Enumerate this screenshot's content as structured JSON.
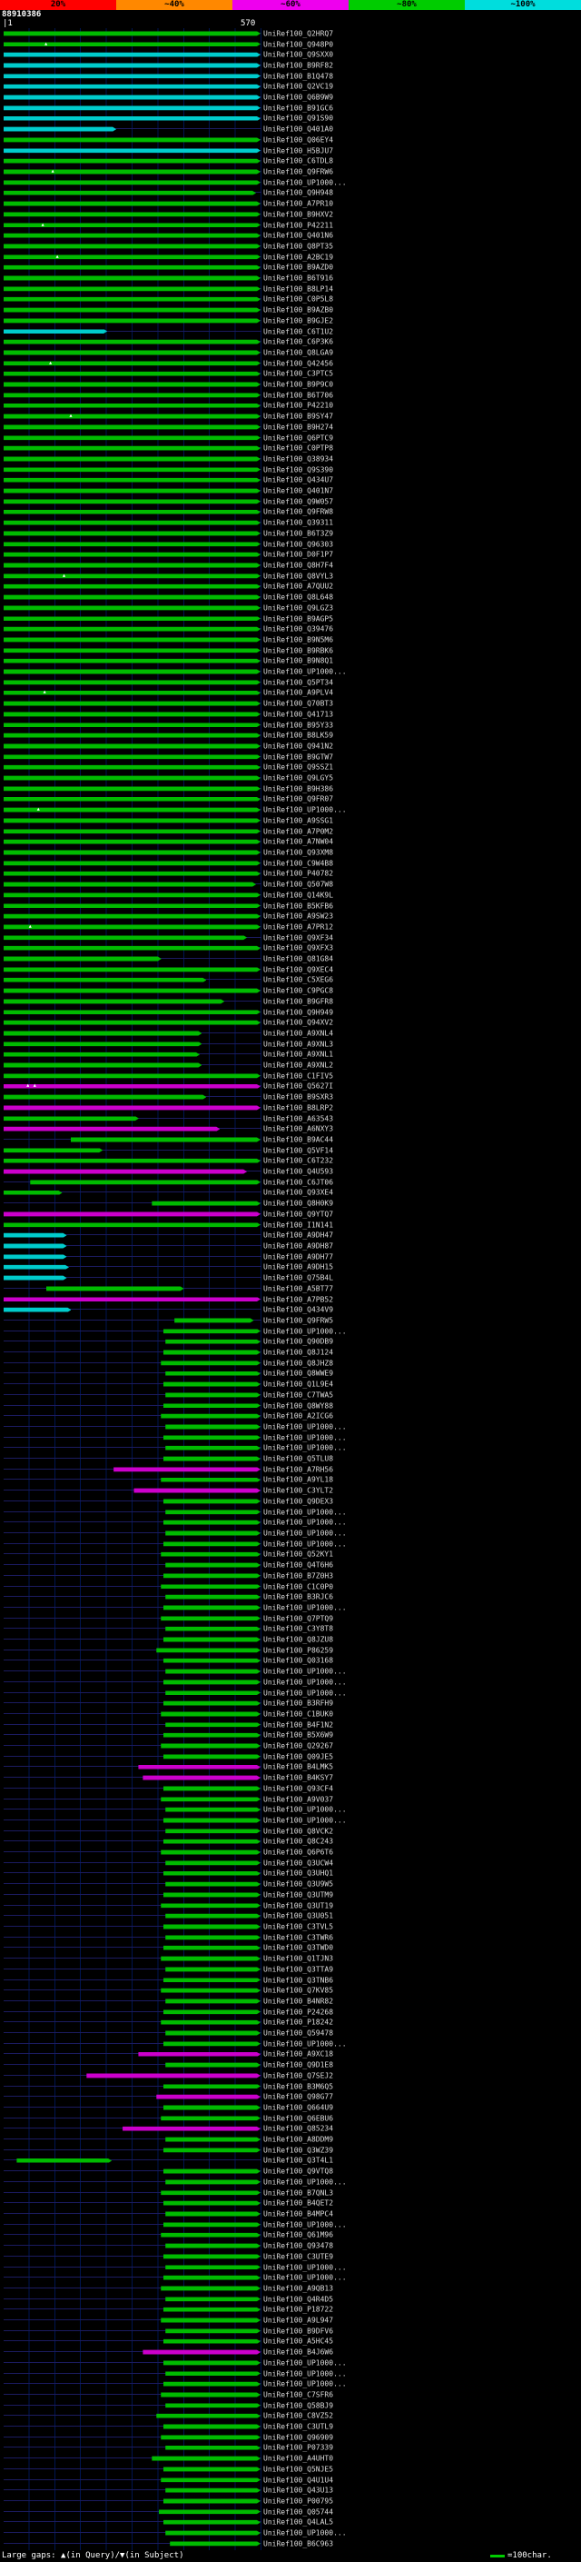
{
  "app": {
    "background": "#000000"
  },
  "chart_data": {
    "type": "bar",
    "subtype": "blast-alignment-overview",
    "title": "88910386",
    "query": {
      "id": "88910386",
      "length": 570
    },
    "axis": {
      "start_label": "|1",
      "end_label": "570",
      "min": 1,
      "max": 570,
      "gridline_interval": 57
    },
    "identity_scale": {
      "labels": [
        "20%",
        "~40%",
        "~60%",
        "~80%",
        "~100%"
      ],
      "colors": [
        "#ff0000",
        "#ff8800",
        "#ee00ee",
        "#00cc00",
        "#00dddd"
      ]
    },
    "bar_colors": {
      "g": "#00bb00",
      "c": "#00cccc",
      "m": "#cc00cc"
    },
    "label_prefix": "UniRef100_",
    "legend": {
      "gaps": "Large gaps: ▲(in Query)/▼(in Subject)",
      "scale_text": "=100char."
    },
    "rows": [
      [
        "Q2HRQ7",
        1,
        570,
        "g"
      ],
      [
        "Q948P0",
        1,
        570,
        "g",
        [
          95
        ]
      ],
      [
        "Q9SXX0",
        1,
        570,
        "c"
      ],
      [
        "B9RF82",
        1,
        570,
        "c"
      ],
      [
        "B1Q478",
        1,
        570,
        "c"
      ],
      [
        "Q2VC19",
        1,
        570,
        "c"
      ],
      [
        "Q6B9W9",
        1,
        570,
        "c"
      ],
      [
        "B91GC6",
        1,
        570,
        "c"
      ],
      [
        "Q91S90",
        1,
        570,
        "c"
      ],
      [
        "Q401A0",
        1,
        250,
        "c"
      ],
      [
        "Q06EY4",
        1,
        570,
        "g"
      ],
      [
        "H5BJU7",
        1,
        570,
        "c"
      ],
      [
        "C6TDL8",
        1,
        570,
        "g"
      ],
      [
        "Q9FRW6",
        1,
        570,
        "g",
        [
          110
        ]
      ],
      [
        "UP1000...",
        1,
        570,
        "g"
      ],
      [
        "Q9H948",
        1,
        560,
        "g"
      ],
      [
        "A7PR10",
        1,
        570,
        "g"
      ],
      [
        "B9HXV2",
        1,
        570,
        "g"
      ],
      [
        "P42211",
        1,
        570,
        "g",
        [
          88
        ]
      ],
      [
        "Q401N6",
        1,
        570,
        "g"
      ],
      [
        "Q8PT35",
        1,
        570,
        "g"
      ],
      [
        "A2BC19",
        1,
        570,
        "g",
        [
          120
        ]
      ],
      [
        "B9AZD0",
        1,
        570,
        "g"
      ],
      [
        "B6T916",
        1,
        570,
        "g"
      ],
      [
        "B8LP14",
        1,
        570,
        "g"
      ],
      [
        "C0P5L8",
        1,
        570,
        "g"
      ],
      [
        "B9AZB0",
        1,
        570,
        "g"
      ],
      [
        "B9GJE2",
        1,
        570,
        "g"
      ],
      [
        "C6T1U2",
        1,
        230,
        "c"
      ],
      [
        "C6P3K6",
        1,
        570,
        "g"
      ],
      [
        "Q8LGA9",
        1,
        570,
        "g"
      ],
      [
        "Q42456",
        1,
        570,
        "g",
        [
          105
        ]
      ],
      [
        "C3PTC5",
        1,
        570,
        "g"
      ],
      [
        "B9P9C0",
        1,
        570,
        "g"
      ],
      [
        "B6T706",
        1,
        570,
        "g"
      ],
      [
        "P42210",
        1,
        570,
        "g"
      ],
      [
        "B9SY47",
        1,
        570,
        "g",
        [
          150
        ]
      ],
      [
        "B9H274",
        1,
        570,
        "g"
      ],
      [
        "Q6PTC9",
        1,
        570,
        "g"
      ],
      [
        "C0PTP8",
        1,
        570,
        "g"
      ],
      [
        "Q38934",
        1,
        570,
        "g"
      ],
      [
        "Q9S390",
        1,
        570,
        "g"
      ],
      [
        "Q434U7",
        1,
        570,
        "g"
      ],
      [
        "Q401N7",
        1,
        570,
        "g"
      ],
      [
        "Q9W057",
        1,
        570,
        "g"
      ],
      [
        "Q9FRW8",
        1,
        570,
        "g"
      ],
      [
        "Q39311",
        1,
        570,
        "g"
      ],
      [
        "B6T3Z9",
        1,
        570,
        "g"
      ],
      [
        "Q96303",
        1,
        570,
        "g"
      ],
      [
        "D0F1P7",
        1,
        570,
        "g"
      ],
      [
        "Q8H7F4",
        1,
        570,
        "g"
      ],
      [
        "Q8VYL3",
        1,
        570,
        "g",
        [
          135
        ]
      ],
      [
        "A7QUU2",
        1,
        570,
        "g"
      ],
      [
        "Q8L648",
        1,
        570,
        "g"
      ],
      [
        "Q9LGZ3",
        1,
        570,
        "g"
      ],
      [
        "B9AGP5",
        1,
        570,
        "g"
      ],
      [
        "Q39476",
        1,
        570,
        "g"
      ],
      [
        "B9N5M6",
        1,
        570,
        "g"
      ],
      [
        "B9RBK6",
        1,
        570,
        "g"
      ],
      [
        "B9N8Q1",
        1,
        570,
        "g"
      ],
      [
        "UP1000...",
        1,
        570,
        "g"
      ],
      [
        "Q5PT34",
        1,
        570,
        "g"
      ],
      [
        "A9PLV4",
        1,
        570,
        "g",
        [
          92
        ]
      ],
      [
        "Q70BT3",
        1,
        570,
        "g"
      ],
      [
        "Q41713",
        1,
        570,
        "g"
      ],
      [
        "B95Y33",
        1,
        570,
        "g"
      ],
      [
        "B8LK59",
        1,
        570,
        "g"
      ],
      [
        "Q941N2",
        1,
        570,
        "g"
      ],
      [
        "B9GTW7",
        1,
        570,
        "g"
      ],
      [
        "Q9SSZ1",
        1,
        570,
        "g"
      ],
      [
        "Q9LGY5",
        1,
        570,
        "g"
      ],
      [
        "B9H386",
        1,
        570,
        "g"
      ],
      [
        "Q9FR07",
        1,
        570,
        "g"
      ],
      [
        "UP1000...",
        1,
        570,
        "g",
        [
          78
        ]
      ],
      [
        "A9SSG1",
        1,
        570,
        "g"
      ],
      [
        "A7P0M2",
        1,
        570,
        "g"
      ],
      [
        "A7NW04",
        1,
        570,
        "g"
      ],
      [
        "Q93XM8",
        1,
        570,
        "g"
      ],
      [
        "C9W4B8",
        1,
        570,
        "g"
      ],
      [
        "P40782",
        1,
        570,
        "g"
      ],
      [
        "Q507W8",
        1,
        560,
        "g"
      ],
      [
        "Q14K9L",
        1,
        570,
        "g"
      ],
      [
        "B5KFB6",
        1,
        570,
        "g"
      ],
      [
        "A9SW23",
        1,
        570,
        "g"
      ],
      [
        "A7PR12",
        1,
        570,
        "g",
        [
          60
        ]
      ],
      [
        "Q9XF34",
        1,
        540,
        "g"
      ],
      [
        "Q9XFX3",
        1,
        570,
        "g"
      ],
      [
        "Q81G84",
        1,
        350,
        "g"
      ],
      [
        "Q9XEC4",
        1,
        570,
        "g"
      ],
      [
        "C5XEG6",
        1,
        450,
        "g"
      ],
      [
        "C9PGC8",
        1,
        570,
        "g"
      ],
      [
        "B9GFR8",
        1,
        490,
        "g"
      ],
      [
        "Q9H949",
        1,
        570,
        "g"
      ],
      [
        "Q94XV2",
        1,
        570,
        "g"
      ],
      [
        "A9XNL4",
        1,
        440,
        "g"
      ],
      [
        "A9XNL3",
        1,
        440,
        "g"
      ],
      [
        "A9XNL1",
        1,
        435,
        "g"
      ],
      [
        "A9XNL2",
        1,
        440,
        "g"
      ],
      [
        "C1FIV5",
        1,
        570,
        "g"
      ],
      [
        "Q5627I",
        1,
        570,
        "m",
        [
          55,
          70
        ]
      ],
      [
        "B9SXR3",
        1,
        450,
        "g"
      ],
      [
        "B8LRP2",
        1,
        570,
        "m"
      ],
      [
        "A63543",
        1,
        300,
        "g"
      ],
      [
        "A6NXY3",
        1,
        480,
        "m"
      ],
      [
        "B9AC44",
        150,
        570,
        "g"
      ],
      [
        "Q5VF14",
        1,
        220,
        "g"
      ],
      [
        "C6T232",
        1,
        570,
        "g"
      ],
      [
        "Q4U593",
        1,
        540,
        "m"
      ],
      [
        "C6JT06",
        60,
        570,
        "g"
      ],
      [
        "Q93XE4",
        1,
        130,
        "g"
      ],
      [
        "Q8H0K9",
        330,
        570,
        "g"
      ],
      [
        "Q9YTQ7",
        1,
        570,
        "m"
      ],
      [
        "I1N141",
        1,
        570,
        "g"
      ],
      [
        "A9DH47",
        1,
        140,
        "c"
      ],
      [
        "A9DH87",
        1,
        140,
        "c"
      ],
      [
        "A9DH77",
        1,
        140,
        "c"
      ],
      [
        "A9DH15",
        1,
        145,
        "c"
      ],
      [
        "Q75B4L",
        1,
        140,
        "c"
      ],
      [
        "A5BT77",
        95,
        400,
        "g"
      ],
      [
        "A7PB52",
        1,
        570,
        "m"
      ],
      [
        "Q434V9",
        1,
        150,
        "c"
      ],
      [
        "Q9FRW5",
        380,
        555,
        "g"
      ],
      [
        "UP1000...",
        355,
        570,
        "g"
      ],
      [
        "Q90DB9",
        360,
        570,
        "g"
      ],
      [
        "Q8J124",
        355,
        570,
        "g"
      ],
      [
        "Q8JHZ8",
        350,
        570,
        "g"
      ],
      [
        "Q8WWE9",
        360,
        570,
        "g"
      ],
      [
        "Q1L9E4",
        355,
        570,
        "g"
      ],
      [
        "C7TWA5",
        360,
        570,
        "g"
      ],
      [
        "Q8WY88",
        355,
        570,
        "g"
      ],
      [
        "A2ICG6",
        350,
        570,
        "g"
      ],
      [
        "UP1000...",
        360,
        570,
        "g"
      ],
      [
        "UP1000...",
        355,
        570,
        "g"
      ],
      [
        "UP1000...",
        360,
        570,
        "g"
      ],
      [
        "Q5TLU8",
        355,
        570,
        "g"
      ],
      [
        "A7RH56",
        245,
        570,
        "m"
      ],
      [
        "A9YL18",
        350,
        570,
        "g"
      ],
      [
        "C3YLT2",
        290,
        570,
        "m"
      ],
      [
        "Q9DEX3",
        355,
        570,
        "g"
      ],
      [
        "UP1000...",
        360,
        570,
        "g"
      ],
      [
        "UP1000...",
        355,
        570,
        "g"
      ],
      [
        "UP1000...",
        360,
        570,
        "g"
      ],
      [
        "UP1000...",
        355,
        570,
        "g"
      ],
      [
        "Q52KY1",
        350,
        570,
        "g"
      ],
      [
        "Q4T6H6",
        360,
        570,
        "g"
      ],
      [
        "B7Z0H3",
        355,
        570,
        "g"
      ],
      [
        "C1C0P0",
        350,
        570,
        "g"
      ],
      [
        "B3RJC6",
        360,
        570,
        "g"
      ],
      [
        "UP1000...",
        355,
        570,
        "g"
      ],
      [
        "Q7PTQ9",
        350,
        570,
        "g"
      ],
      [
        "C3Y8T8",
        360,
        570,
        "g"
      ],
      [
        "Q8JZU8",
        355,
        570,
        "g"
      ],
      [
        "P86259",
        340,
        570,
        "g"
      ],
      [
        "Q03168",
        355,
        570,
        "g"
      ],
      [
        "UP1000...",
        360,
        570,
        "g"
      ],
      [
        "UP1000...",
        355,
        570,
        "g"
      ],
      [
        "UP1000...",
        360,
        570,
        "g"
      ],
      [
        "B3RFH9",
        355,
        570,
        "g"
      ],
      [
        "C1BUK0",
        350,
        570,
        "g"
      ],
      [
        "B4F1N2",
        360,
        570,
        "g"
      ],
      [
        "B5X6W9",
        355,
        570,
        "g"
      ],
      [
        "Q29267",
        350,
        570,
        "g"
      ],
      [
        "Q09JE5",
        355,
        570,
        "g"
      ],
      [
        "B4LMK5",
        300,
        570,
        "m"
      ],
      [
        "B4KSY7",
        310,
        570,
        "m"
      ],
      [
        "Q93CF4",
        355,
        570,
        "g"
      ],
      [
        "A9V037",
        350,
        570,
        "g"
      ],
      [
        "UP1000...",
        360,
        570,
        "g"
      ],
      [
        "UP1000...",
        355,
        570,
        "g"
      ],
      [
        "Q8VCK2",
        360,
        570,
        "g"
      ],
      [
        "Q8C243",
        355,
        570,
        "g"
      ],
      [
        "Q6P6T6",
        350,
        570,
        "g"
      ],
      [
        "Q3UCW4",
        360,
        570,
        "g"
      ],
      [
        "Q3UHQ1",
        355,
        570,
        "g"
      ],
      [
        "Q3U9W5",
        360,
        570,
        "g"
      ],
      [
        "Q3UTM9",
        355,
        570,
        "g"
      ],
      [
        "Q3UT19",
        350,
        570,
        "g"
      ],
      [
        "Q3U051",
        360,
        570,
        "g"
      ],
      [
        "C3TVL5",
        355,
        570,
        "g"
      ],
      [
        "C3TWR6",
        360,
        570,
        "g"
      ],
      [
        "Q3TWD0",
        355,
        570,
        "g"
      ],
      [
        "Q1TJN3",
        350,
        570,
        "g"
      ],
      [
        "Q3TTA9",
        360,
        570,
        "g"
      ],
      [
        "Q3TNB6",
        355,
        570,
        "g"
      ],
      [
        "Q7KV85",
        350,
        570,
        "g"
      ],
      [
        "B4NR82",
        360,
        570,
        "g"
      ],
      [
        "P24268",
        355,
        570,
        "g"
      ],
      [
        "P18242",
        350,
        570,
        "g"
      ],
      [
        "Q59478",
        360,
        570,
        "g"
      ],
      [
        "UP1000...",
        355,
        570,
        "g"
      ],
      [
        "A9XC18",
        300,
        570,
        "m"
      ],
      [
        "Q9D1E8",
        360,
        570,
        "g"
      ],
      [
        "Q7SEJ2",
        185,
        570,
        "m"
      ],
      [
        "B3M6Q5",
        355,
        570,
        "g"
      ],
      [
        "Q98G77",
        340,
        570,
        "m"
      ],
      [
        "Q664U9",
        355,
        570,
        "g"
      ],
      [
        "Q6EBU6",
        350,
        570,
        "g"
      ],
      [
        "Q85234",
        265,
        570,
        "m"
      ],
      [
        "A8DDM9",
        360,
        570,
        "g"
      ],
      [
        "Q3WZ39",
        355,
        570,
        "g"
      ],
      [
        "Q3T4L1",
        30,
        240,
        "g"
      ],
      [
        "Q9VTQ8",
        355,
        570,
        "g"
      ],
      [
        "UP1000...",
        360,
        570,
        "g"
      ],
      [
        "B7QNL3",
        350,
        570,
        "g"
      ],
      [
        "B4QET2",
        355,
        570,
        "g"
      ],
      [
        "B4MPC4",
        360,
        570,
        "g"
      ],
      [
        "UP1000...",
        355,
        570,
        "g"
      ],
      [
        "Q61M96",
        350,
        570,
        "g"
      ],
      [
        "Q93478",
        360,
        570,
        "g"
      ],
      [
        "C3UTE9",
        355,
        570,
        "g"
      ],
      [
        "UP1000...",
        360,
        570,
        "g"
      ],
      [
        "UP1000...",
        355,
        570,
        "g"
      ],
      [
        "A9QB13",
        350,
        570,
        "g"
      ],
      [
        "Q4R4D5",
        360,
        570,
        "g"
      ],
      [
        "P18722",
        355,
        570,
        "g"
      ],
      [
        "A9L947",
        350,
        570,
        "g"
      ],
      [
        "B9DFV6",
        360,
        570,
        "g"
      ],
      [
        "A5HC45",
        355,
        570,
        "g"
      ],
      [
        "B4J6W6",
        310,
        570,
        "m"
      ],
      [
        "UP1000...",
        355,
        570,
        "g"
      ],
      [
        "UP1000...",
        360,
        570,
        "g"
      ],
      [
        "UP1000...",
        355,
        570,
        "g"
      ],
      [
        "C7SFR6",
        350,
        570,
        "g"
      ],
      [
        "Q58BJ9",
        360,
        570,
        "g"
      ],
      [
        "C8VZ52",
        340,
        570,
        "g"
      ],
      [
        "C3UTL9",
        355,
        570,
        "g"
      ],
      [
        "Q96909",
        350,
        570,
        "g"
      ],
      [
        "P07339",
        360,
        570,
        "g"
      ],
      [
        "A4UHT0",
        330,
        570,
        "g"
      ],
      [
        "Q5NJE5",
        355,
        570,
        "g"
      ],
      [
        "Q4U1U4",
        350,
        570,
        "g"
      ],
      [
        "Q43U13",
        360,
        570,
        "g"
      ],
      [
        "P00795",
        355,
        570,
        "g"
      ],
      [
        "Q05744",
        345,
        570,
        "g"
      ],
      [
        "Q4LAL5",
        355,
        570,
        "g"
      ],
      [
        "UP1000...",
        360,
        570,
        "g"
      ],
      [
        "B6C963",
        370,
        570,
        "g"
      ]
    ]
  }
}
